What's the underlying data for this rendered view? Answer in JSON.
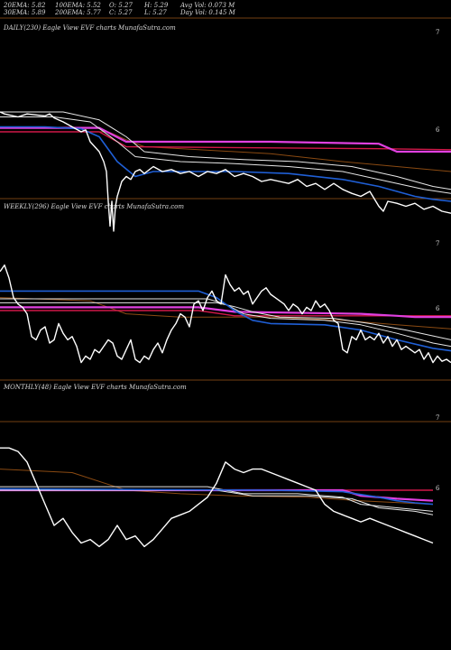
{
  "header": {
    "row1": [
      "20EMA: 5.82",
      "100EMA: 5.52",
      "O: 5.27",
      "H: 5.29",
      "Avg Vol: 0.073 M"
    ],
    "row2": [
      "30EMA: 5.89",
      "200EMA: 5.77",
      "C: 5.27",
      "L: 5.27",
      "Day Vol: 0.145 M"
    ]
  },
  "colors": {
    "price": "#ffffff",
    "ema_blue": "#1f5fd6",
    "ema_white": "#e6e6e6",
    "ema_magenta": "#e040e0",
    "ema_red": "#d01848",
    "ema_brown": "#8a4a12",
    "separator": "#9a5418",
    "background": "#000000"
  },
  "chart_data": [
    {
      "type": "line",
      "title": "DAILY(230) Eagle  View  EVF charts MunafaSutra.com",
      "y_ticks": [
        "7",
        "6"
      ],
      "ylim": [
        5.0,
        7.1
      ],
      "series": [
        {
          "color": "price",
          "x": [
            0,
            5,
            10,
            20,
            30,
            40,
            50,
            55,
            60,
            70,
            80,
            90,
            95,
            100,
            105,
            110,
            115,
            118,
            120,
            122,
            124,
            126,
            128,
            130,
            135,
            140,
            145,
            150,
            155,
            160,
            170,
            180,
            190,
            200,
            210,
            220,
            230,
            240,
            250,
            260,
            270,
            280,
            290,
            300,
            310,
            320,
            330,
            340,
            350,
            360,
            370,
            380,
            390,
            400,
            410,
            420,
            425,
            430,
            440,
            450,
            460,
            470,
            480,
            490,
            500
          ],
          "y": [
            6.2,
            6.18,
            6.17,
            6.15,
            6.18,
            6.17,
            6.16,
            6.18,
            6.14,
            6.1,
            6.05,
            6.0,
            6.02,
            5.9,
            5.85,
            5.8,
            5.7,
            5.6,
            5.3,
            5.05,
            5.3,
            5.0,
            5.25,
            5.35,
            5.5,
            5.55,
            5.52,
            5.6,
            5.62,
            5.58,
            5.65,
            5.6,
            5.62,
            5.58,
            5.6,
            5.55,
            5.6,
            5.58,
            5.62,
            5.55,
            5.58,
            5.55,
            5.5,
            5.52,
            5.5,
            5.48,
            5.52,
            5.45,
            5.48,
            5.42,
            5.48,
            5.42,
            5.38,
            5.35,
            5.4,
            5.25,
            5.2,
            5.3,
            5.28,
            5.25,
            5.28,
            5.22,
            5.25,
            5.2,
            5.18
          ]
        },
        {
          "color": "ema_blue",
          "x": [
            0,
            50,
            90,
            110,
            130,
            150,
            170,
            200,
            260,
            320,
            380,
            420,
            460,
            480,
            500
          ],
          "y": [
            6.05,
            6.05,
            6.03,
            5.95,
            5.7,
            5.55,
            5.6,
            5.6,
            5.6,
            5.58,
            5.52,
            5.45,
            5.35,
            5.32,
            5.3
          ]
        },
        {
          "color": "ema_white",
          "x": [
            0,
            60,
            100,
            130,
            150,
            200,
            260,
            320,
            380,
            430,
            470,
            500
          ],
          "y": [
            6.15,
            6.15,
            6.1,
            5.9,
            5.75,
            5.7,
            5.68,
            5.65,
            5.6,
            5.5,
            5.42,
            5.38
          ]
        },
        {
          "color": "ema_white",
          "x": [
            0,
            70,
            110,
            140,
            160,
            210,
            270,
            330,
            390,
            440,
            480,
            500
          ],
          "y": [
            6.2,
            6.2,
            6.12,
            5.95,
            5.8,
            5.75,
            5.72,
            5.7,
            5.65,
            5.55,
            5.45,
            5.42
          ]
        },
        {
          "color": "ema_brown",
          "x": [
            0,
            120,
            140,
            160,
            220,
            300,
            380,
            440,
            500
          ],
          "y": [
            6.0,
            6.0,
            5.92,
            5.85,
            5.82,
            5.78,
            5.7,
            5.65,
            5.6
          ]
        },
        {
          "color": "ema_magenta",
          "x": [
            0,
            110,
            140,
            300,
            420,
            440,
            460,
            500
          ],
          "y": [
            6.04,
            6.04,
            5.9,
            5.9,
            5.88,
            5.8,
            5.8,
            5.8
          ]
        },
        {
          "color": "ema_red",
          "x": [
            0,
            110,
            140,
            420,
            500
          ],
          "y": [
            6.0,
            6.0,
            5.85,
            5.83,
            5.82
          ]
        }
      ]
    },
    {
      "type": "line",
      "title": "WEEKLY(296) Eagle  View  EVF charts MunafaSutra.com",
      "y_ticks": [
        "7",
        "6"
      ],
      "ylim": [
        5.0,
        7.1
      ],
      "series": [
        {
          "color": "price",
          "x": [
            0,
            5,
            10,
            15,
            20,
            25,
            30,
            35,
            40,
            45,
            50,
            55,
            60,
            65,
            70,
            75,
            80,
            85,
            90,
            95,
            100,
            105,
            110,
            115,
            120,
            125,
            130,
            135,
            140,
            145,
            150,
            155,
            160,
            165,
            170,
            175,
            180,
            185,
            190,
            195,
            200,
            205,
            210,
            215,
            220,
            225,
            230,
            235,
            240,
            245,
            250,
            255,
            260,
            265,
            270,
            275,
            280,
            285,
            290,
            295,
            300,
            305,
            310,
            315,
            320,
            325,
            330,
            335,
            340,
            345,
            350,
            355,
            360,
            365,
            370,
            375,
            380,
            385,
            390,
            395,
            400,
            405,
            410,
            415,
            420,
            425,
            430,
            435,
            440,
            445,
            450,
            455,
            460,
            465,
            470,
            475,
            480,
            485,
            490,
            495,
            500
          ],
          "y": [
            6.6,
            6.7,
            6.5,
            6.2,
            6.1,
            6.05,
            5.95,
            5.6,
            5.55,
            5.7,
            5.75,
            5.5,
            5.55,
            5.8,
            5.65,
            5.55,
            5.6,
            5.45,
            5.2,
            5.3,
            5.25,
            5.4,
            5.35,
            5.45,
            5.55,
            5.5,
            5.3,
            5.25,
            5.4,
            5.55,
            5.25,
            5.2,
            5.3,
            5.25,
            5.4,
            5.5,
            5.35,
            5.55,
            5.7,
            5.8,
            5.95,
            5.9,
            5.75,
            6.1,
            6.15,
            6.0,
            6.2,
            6.3,
            6.15,
            6.1,
            6.55,
            6.4,
            6.3,
            6.35,
            6.25,
            6.3,
            6.1,
            6.2,
            6.3,
            6.35,
            6.25,
            6.2,
            6.15,
            6.1,
            6.0,
            6.1,
            6.05,
            5.95,
            6.05,
            6.0,
            6.15,
            6.05,
            6.1,
            6.0,
            5.85,
            5.8,
            5.4,
            5.35,
            5.6,
            5.55,
            5.7,
            5.55,
            5.6,
            5.55,
            5.65,
            5.5,
            5.6,
            5.45,
            5.55,
            5.4,
            5.45,
            5.4,
            5.35,
            5.4,
            5.25,
            5.35,
            5.2,
            5.3,
            5.22,
            5.25,
            5.2
          ]
        },
        {
          "color": "ema_blue",
          "x": [
            0,
            220,
            240,
            260,
            280,
            300,
            360,
            400,
            440,
            480,
            500
          ],
          "y": [
            6.3,
            6.3,
            6.2,
            6.0,
            5.85,
            5.8,
            5.78,
            5.7,
            5.55,
            5.42,
            5.38
          ]
        },
        {
          "color": "ema_white",
          "x": [
            0,
            230,
            250,
            270,
            300,
            360,
            400,
            440,
            480,
            500
          ],
          "y": [
            6.18,
            6.18,
            6.1,
            5.95,
            5.88,
            5.85,
            5.78,
            5.65,
            5.5,
            5.45
          ]
        },
        {
          "color": "ema_white",
          "x": [
            0,
            240,
            260,
            280,
            310,
            370,
            410,
            450,
            490,
            500
          ],
          "y": [
            6.12,
            6.12,
            6.06,
            5.98,
            5.9,
            5.88,
            5.8,
            5.7,
            5.58,
            5.55
          ]
        },
        {
          "color": "ema_brown",
          "x": [
            0,
            100,
            140,
            200,
            300,
            380,
            440,
            500
          ],
          "y": [
            6.2,
            6.15,
            5.95,
            5.9,
            5.9,
            5.85,
            5.78,
            5.72
          ]
        },
        {
          "color": "ema_magenta",
          "x": [
            0,
            220,
            260,
            400,
            440,
            460,
            500
          ],
          "y": [
            6.05,
            6.05,
            5.98,
            5.95,
            5.92,
            5.9,
            5.9
          ]
        },
        {
          "color": "ema_red",
          "x": [
            0,
            220,
            260,
            420,
            500
          ],
          "y": [
            6.0,
            6.0,
            5.92,
            5.92,
            5.92
          ]
        }
      ]
    },
    {
      "type": "line",
      "title": "MONTHLY(48) Eagle  View  EVF charts MunafaSutra.com",
      "y_ticks": [
        "7",
        "6"
      ],
      "ylim": [
        5.0,
        7.1
      ],
      "series": [
        {
          "color": "price",
          "x": [
            0,
            10,
            20,
            30,
            40,
            50,
            60,
            70,
            80,
            90,
            100,
            110,
            120,
            130,
            140,
            150,
            160,
            170,
            180,
            190,
            200,
            210,
            220,
            230,
            240,
            250,
            260,
            270,
            280,
            290,
            300,
            310,
            320,
            330,
            340,
            350,
            360,
            370,
            380,
            390,
            400,
            410,
            420,
            430,
            440,
            450,
            460,
            470,
            480
          ],
          "y": [
            6.6,
            6.6,
            6.55,
            6.4,
            6.1,
            5.8,
            5.5,
            5.6,
            5.4,
            5.25,
            5.3,
            5.2,
            5.3,
            5.5,
            5.3,
            5.35,
            5.2,
            5.3,
            5.45,
            5.6,
            5.65,
            5.7,
            5.8,
            5.9,
            6.1,
            6.4,
            6.3,
            6.25,
            6.3,
            6.3,
            6.25,
            6.2,
            6.15,
            6.1,
            6.05,
            6.0,
            5.8,
            5.7,
            5.65,
            5.6,
            5.55,
            5.6,
            5.55,
            5.5,
            5.45,
            5.4,
            5.35,
            5.3,
            5.25
          ]
        },
        {
          "color": "ema_blue",
          "x": [
            0,
            300,
            380,
            420,
            440,
            460,
            480
          ],
          "y": [
            6.02,
            6.0,
            5.98,
            5.9,
            5.85,
            5.82,
            5.8
          ]
        },
        {
          "color": "ema_white",
          "x": [
            0,
            230,
            250,
            270,
            330,
            380,
            400,
            440,
            480
          ],
          "y": [
            6.05,
            6.05,
            6.0,
            5.95,
            5.95,
            5.9,
            5.8,
            5.75,
            5.7
          ]
        },
        {
          "color": "ema_white",
          "x": [
            0,
            240,
            260,
            280,
            340,
            390,
            420,
            460,
            480
          ],
          "y": [
            6.0,
            6.0,
            5.96,
            5.92,
            5.92,
            5.88,
            5.75,
            5.7,
            5.65
          ]
        },
        {
          "color": "ema_brown",
          "x": [
            0,
            80,
            140,
            200,
            260,
            340,
            400,
            480
          ],
          "y": [
            6.3,
            6.25,
            6.0,
            5.95,
            5.92,
            5.9,
            5.85,
            5.8
          ]
        },
        {
          "color": "ema_magenta",
          "x": [
            0,
            380,
            400,
            440,
            480
          ],
          "y": [
            6.0,
            6.0,
            5.92,
            5.88,
            5.85
          ]
        },
        {
          "color": "ema_red",
          "x": [
            0,
            480
          ],
          "y": [
            6.0,
            6.0
          ]
        }
      ]
    }
  ]
}
